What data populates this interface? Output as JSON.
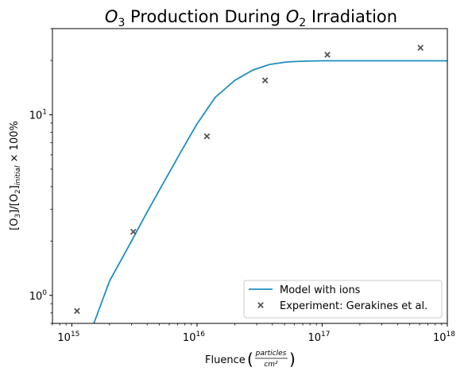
{
  "chart_data": {
    "type": "line",
    "title": {
      "pre": "O",
      "sub1": "3",
      "mid": " Production During ",
      "o2": "O",
      "sub2": "2",
      "post": " Irradiation"
    },
    "xlabel": {
      "pre": "Fluence ",
      "frac_num": "particles",
      "frac_den": "cm²"
    },
    "ylabel": {
      "a": "[O",
      "a_sub": "3",
      "b": "]/[O",
      "b_sub": "2",
      "c": "]",
      "c_sub": "initial",
      "d": " × 100%"
    },
    "x_scale": "log",
    "y_scale": "log",
    "xlim": [
      700000000000000.0,
      1e+18
    ],
    "ylim": [
      0.7,
      30
    ],
    "x_ticks": [
      {
        "value": 1000000000000000.0,
        "base": "10",
        "exp": "15"
      },
      {
        "value": 1e+16,
        "base": "10",
        "exp": "16"
      },
      {
        "value": 1e+17,
        "base": "10",
        "exp": "17"
      },
      {
        "value": 1e+18,
        "base": "10",
        "exp": "18"
      }
    ],
    "y_ticks": [
      {
        "value": 1,
        "base": "10",
        "exp": "0"
      },
      {
        "value": 10,
        "base": "10",
        "exp": "1"
      }
    ],
    "grid": false,
    "legend_position": "lower-right",
    "series": [
      {
        "name": "Model with ions",
        "kind": "line",
        "color": "#1f8ec1",
        "x": [
          1500000000000000.0,
          2000000000000000.0,
          3000000000000000.0,
          4000000000000000.0,
          5500000000000000.0,
          7500000000000000.0,
          1e+16,
          1.4e+16,
          2e+16,
          2.8e+16,
          3.8e+16,
          5.2e+16,
          7e+16,
          1e+17,
          2e+17,
          5e+17,
          1e+18
        ],
        "y": [
          0.7,
          1.2,
          2.0,
          2.9,
          4.3,
          6.3,
          8.9,
          12.5,
          15.5,
          17.7,
          19.0,
          19.6,
          19.8,
          19.9,
          19.9,
          19.9,
          19.9
        ]
      },
      {
        "name": "Experiment: Gerakines et al.",
        "kind": "scatter",
        "marker": "x",
        "color": "#555555",
        "x": [
          1100000000000000.0,
          3100000000000000.0,
          1.2e+16,
          3.5e+16,
          1.1e+17,
          6.1e+17
        ],
        "y": [
          0.82,
          2.25,
          7.6,
          15.5,
          21.5,
          23.5
        ]
      }
    ]
  }
}
